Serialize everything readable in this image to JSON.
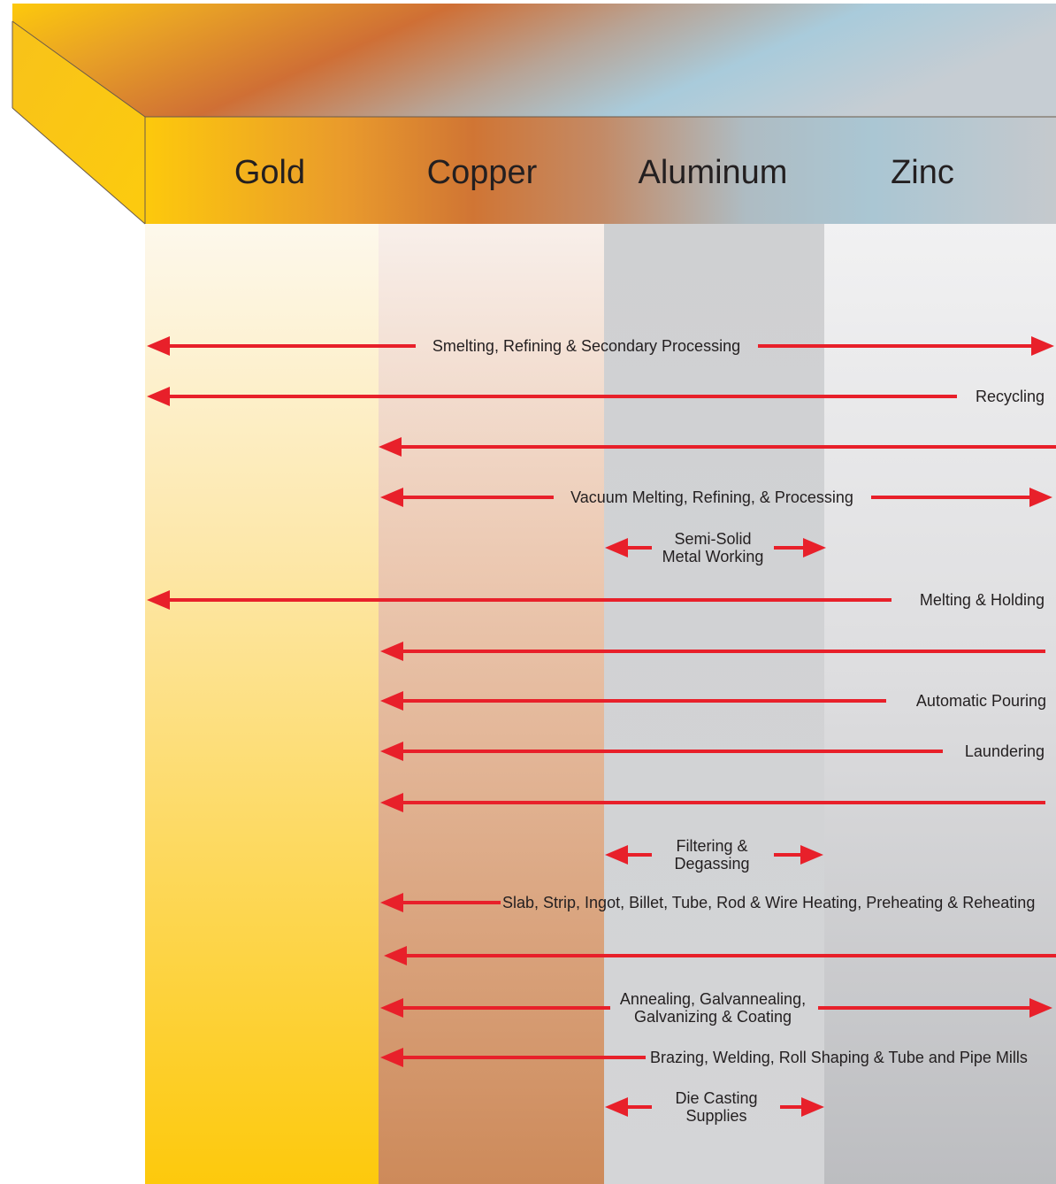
{
  "metals": [
    {
      "name": "Gold"
    },
    {
      "name": "Copper"
    },
    {
      "name": "Aluminum"
    },
    {
      "name": "Zinc"
    }
  ],
  "colors": {
    "gold": "#fdc90c",
    "copper": "#cf6f35",
    "aluminum": "#cfd0d2",
    "zinc": "#c8cacd",
    "arrow": "#e8202a",
    "text": "#231f20"
  },
  "processes": [
    {
      "label": "Smelting, Refining & Secondary Processing",
      "from": "Gold",
      "to": "Zinc",
      "both_heads": true
    },
    {
      "label": "Recycling",
      "from": "Gold",
      "to": "Zinc",
      "both_heads": false
    },
    {
      "label": "",
      "from": "Copper",
      "to": "Zinc",
      "both_heads": false
    },
    {
      "label": "Vacuum Melting, Refining, & Processing",
      "from": "Copper",
      "to": "Zinc",
      "both_heads": true
    },
    {
      "label": "Semi-Solid\nMetal Working",
      "from": "Aluminum",
      "to": "Aluminum",
      "both_heads": true
    },
    {
      "label": "Melting & Holding",
      "from": "Gold",
      "to": "Zinc",
      "both_heads": false
    },
    {
      "label": "",
      "from": "Copper",
      "to": "Zinc",
      "both_heads": false
    },
    {
      "label": "Automatic Pouring",
      "from": "Copper",
      "to": "Zinc",
      "both_heads": false
    },
    {
      "label": "Laundering",
      "from": "Copper",
      "to": "Zinc",
      "both_heads": false
    },
    {
      "label": "",
      "from": "Copper",
      "to": "Zinc",
      "both_heads": false
    },
    {
      "label": "Filtering &\nDegassing",
      "from": "Aluminum",
      "to": "Aluminum",
      "both_heads": true
    },
    {
      "label": "Slab, Strip, Ingot, Billet, Tube, Rod & Wire Heating, Preheating & Reheating",
      "from": "Copper",
      "to": "Zinc",
      "both_heads": false
    },
    {
      "label": "",
      "from": "Copper",
      "to": "Zinc",
      "both_heads": false
    },
    {
      "label": "Annealing, Galvannealing,\nGalvanizing & Coating",
      "from": "Copper",
      "to": "Zinc",
      "both_heads": true
    },
    {
      "label": "Brazing, Welding, Roll Shaping & Tube  and Pipe Mills",
      "from": "Copper",
      "to": "Zinc",
      "both_heads": false
    },
    {
      "label": "Die Casting\nSupplies",
      "from": "Aluminum",
      "to": "Aluminum",
      "both_heads": true
    }
  ]
}
